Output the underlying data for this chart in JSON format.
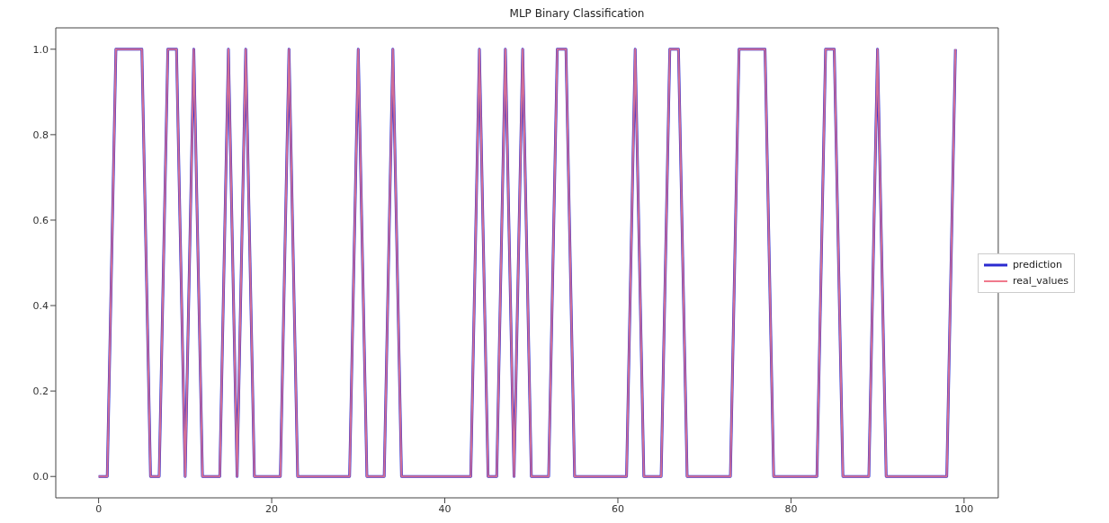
{
  "chart_data": {
    "type": "line",
    "title": "MLP Binary Classification",
    "x": [
      0,
      1,
      2,
      3,
      4,
      5,
      6,
      7,
      8,
      9,
      10,
      11,
      12,
      13,
      14,
      15,
      16,
      17,
      18,
      19,
      20,
      21,
      22,
      23,
      24,
      25,
      26,
      27,
      28,
      29,
      30,
      31,
      32,
      33,
      34,
      35,
      36,
      37,
      38,
      39,
      40,
      41,
      42,
      43,
      44,
      45,
      46,
      47,
      48,
      49,
      50,
      51,
      52,
      53,
      54,
      55,
      56,
      57,
      58,
      59,
      60,
      61,
      62,
      63,
      64,
      65,
      66,
      67,
      68,
      69,
      70,
      71,
      72,
      73,
      74,
      75,
      76,
      77,
      78,
      79,
      80,
      81,
      82,
      83,
      84,
      85,
      86,
      87,
      88,
      89,
      90,
      91,
      92,
      93,
      94,
      95,
      96,
      97,
      98,
      99
    ],
    "series": [
      {
        "name": "prediction",
        "color": "#2a2ad0",
        "values": [
          0,
          0,
          1,
          1,
          1,
          1,
          0,
          0,
          1,
          1,
          0,
          1,
          0,
          0,
          0,
          1,
          0,
          1,
          0,
          0,
          0,
          0,
          1,
          0,
          0,
          0,
          0,
          0,
          0,
          0,
          1,
          0,
          0,
          0,
          1,
          0,
          0,
          0,
          0,
          0,
          0,
          0,
          0,
          0,
          1,
          0,
          0,
          1,
          0,
          1,
          0,
          0,
          0,
          1,
          1,
          0,
          0,
          0,
          0,
          0,
          0,
          0,
          1,
          0,
          0,
          0,
          1,
          1,
          0,
          0,
          0,
          0,
          0,
          0,
          1,
          1,
          1,
          1,
          0,
          0,
          0,
          0,
          0,
          0,
          1,
          1,
          0,
          0,
          0,
          0,
          1,
          0,
          0,
          0,
          0,
          0,
          0,
          0,
          0,
          1
        ]
      },
      {
        "name": "real_values",
        "color": "#f07a8c",
        "values": [
          0,
          0,
          1,
          1,
          1,
          1,
          0,
          0,
          1,
          1,
          0,
          1,
          0,
          0,
          0,
          1,
          0,
          1,
          0,
          0,
          0,
          0,
          1,
          0,
          0,
          0,
          0,
          0,
          0,
          0,
          1,
          0,
          0,
          0,
          1,
          0,
          0,
          0,
          0,
          0,
          0,
          0,
          0,
          0,
          1,
          0,
          0,
          1,
          0,
          1,
          0,
          0,
          0,
          1,
          1,
          0,
          0,
          0,
          0,
          0,
          0,
          0,
          1,
          0,
          0,
          0,
          1,
          1,
          0,
          0,
          0,
          0,
          0,
          0,
          1,
          1,
          1,
          1,
          0,
          0,
          0,
          0,
          0,
          0,
          1,
          1,
          0,
          0,
          0,
          0,
          1,
          0,
          0,
          0,
          0,
          0,
          0,
          0,
          0,
          1
        ]
      }
    ],
    "xlim": [
      -4.95,
      103.95
    ],
    "xticks": [
      0,
      20,
      40,
      60,
      80,
      100
    ],
    "ylim": [
      -0.05,
      1.05
    ],
    "yticks": [
      {
        "value": 0,
        "label": "0.0"
      },
      {
        "value": 0.2,
        "label": "0.2"
      },
      {
        "value": 0.4,
        "label": "0.4"
      },
      {
        "value": 0.6,
        "label": "0.6"
      },
      {
        "value": 0.8,
        "label": "0.8"
      },
      {
        "value": 1,
        "label": "1.0"
      }
    ],
    "grid": false,
    "legend": "right",
    "marker": "none",
    "line_style": "solid"
  }
}
